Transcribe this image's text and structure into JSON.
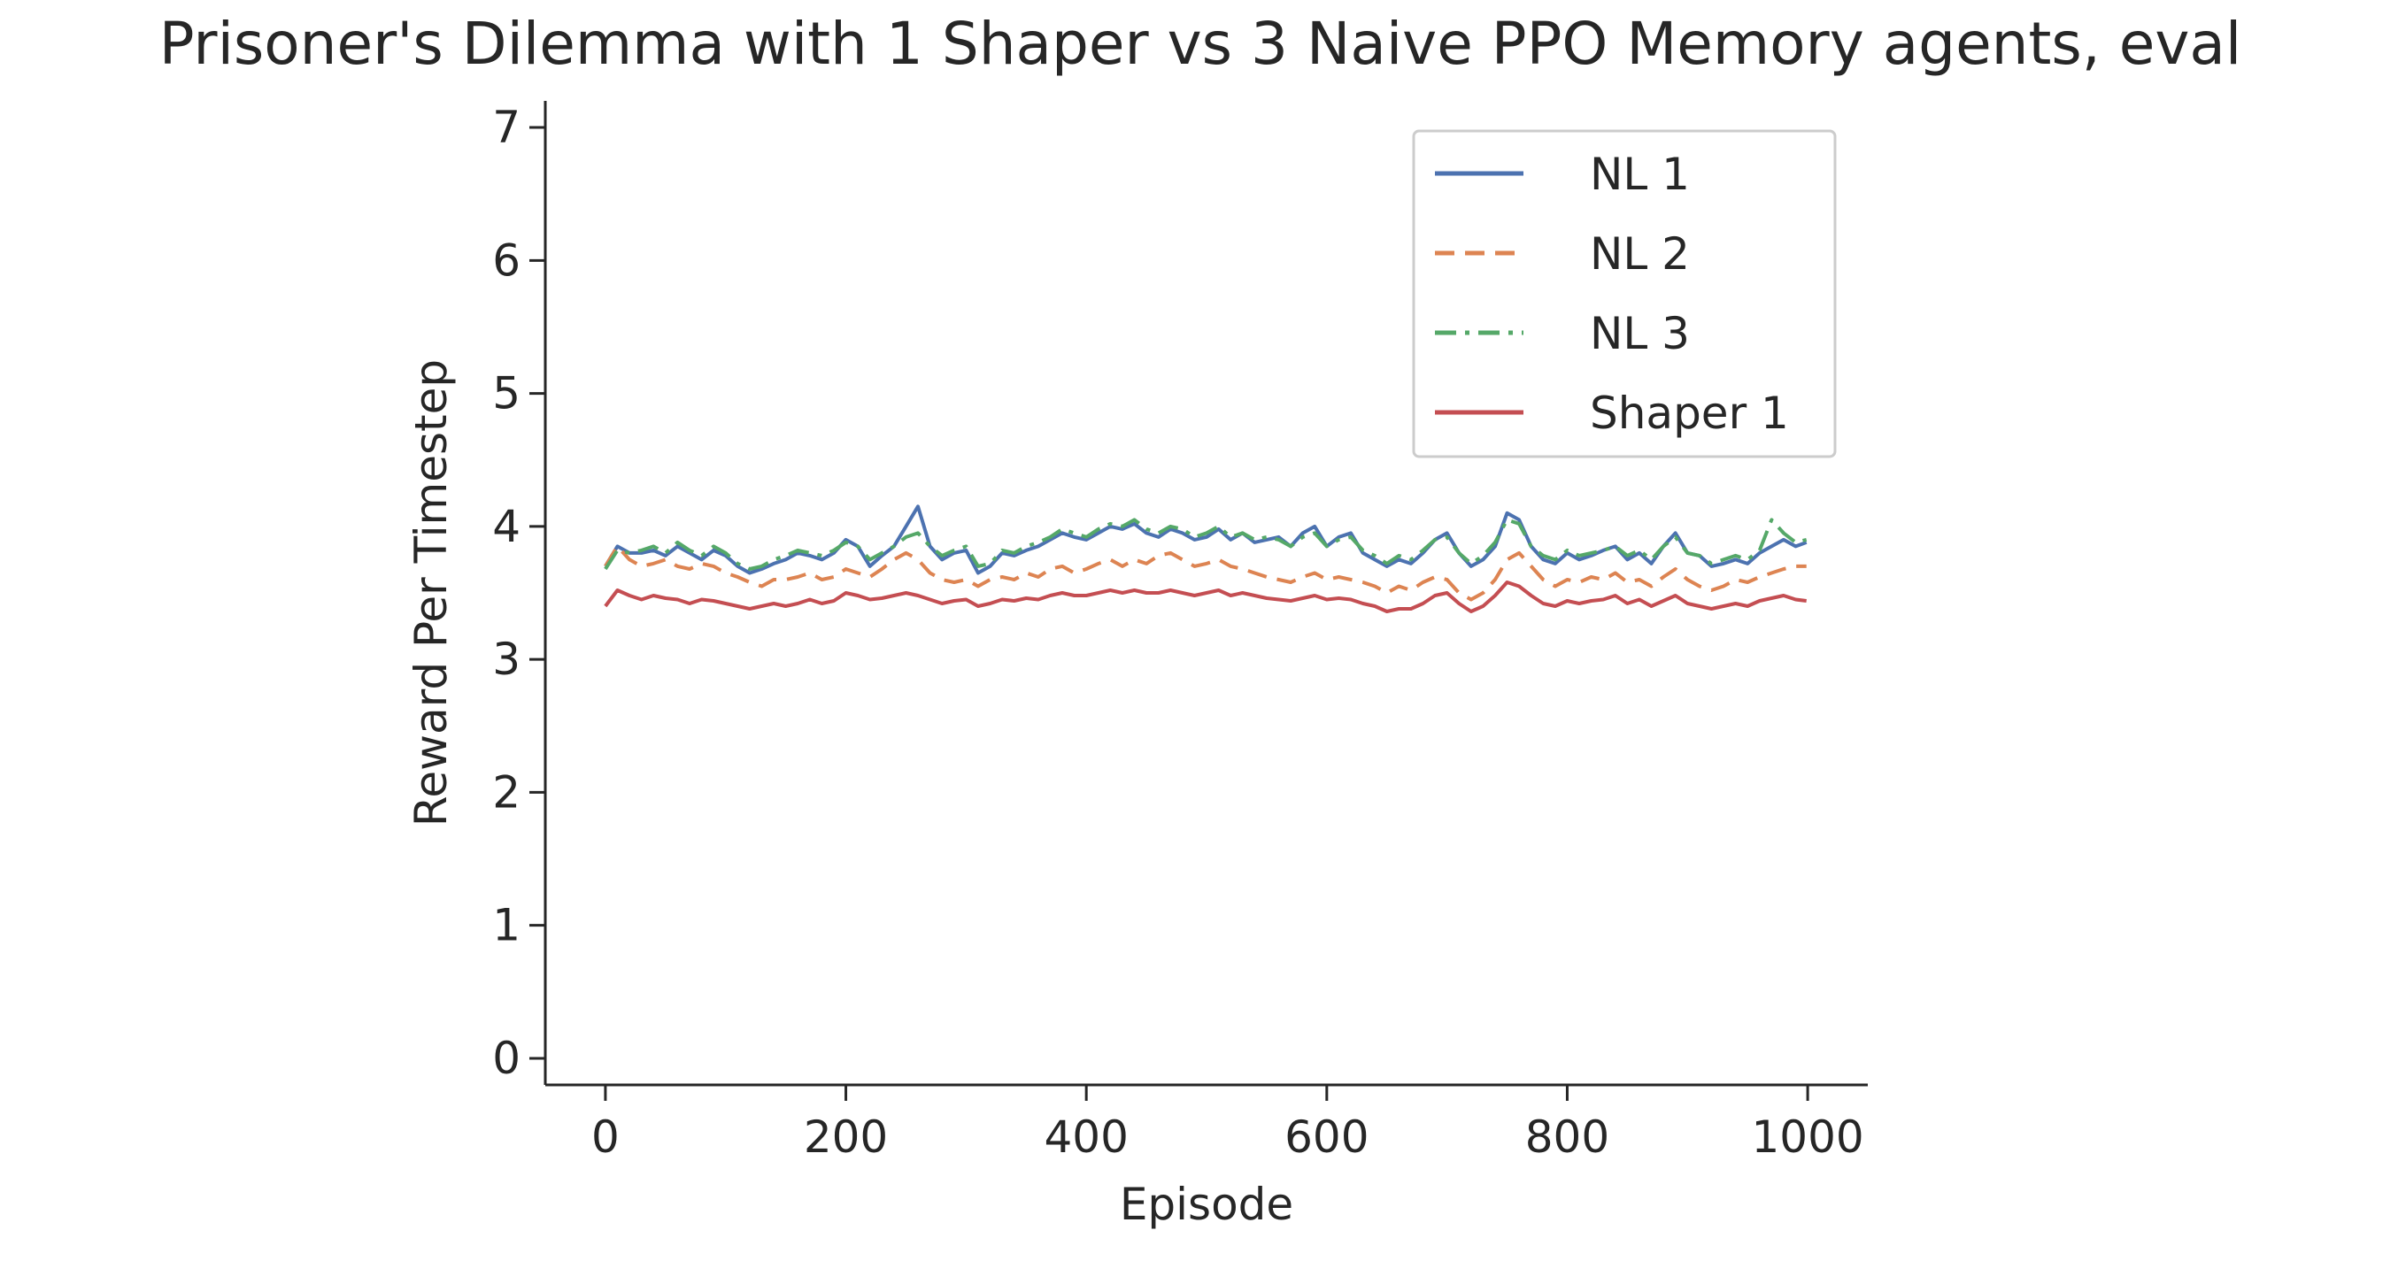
{
  "chart_data": {
    "type": "line",
    "title": "Prisoner's Dilemma with 1 Shaper vs 3 Naive PPO Memory agents, eval",
    "xlabel": "Episode",
    "ylabel": "Reward Per Timestep",
    "xlim": [
      -50,
      1050
    ],
    "ylim": [
      -0.2,
      7.2
    ],
    "xticks": [
      0,
      200,
      400,
      600,
      800,
      1000
    ],
    "yticks": [
      0,
      1,
      2,
      3,
      4,
      5,
      6,
      7
    ],
    "grid": false,
    "legend_position": "top-right",
    "x": [
      0,
      10,
      20,
      30,
      40,
      50,
      60,
      70,
      80,
      90,
      100,
      110,
      120,
      130,
      140,
      150,
      160,
      170,
      180,
      190,
      200,
      210,
      220,
      230,
      240,
      250,
      260,
      270,
      280,
      290,
      300,
      310,
      320,
      330,
      340,
      350,
      360,
      370,
      380,
      390,
      400,
      410,
      420,
      430,
      440,
      450,
      460,
      470,
      480,
      490,
      500,
      510,
      520,
      530,
      540,
      550,
      560,
      570,
      580,
      590,
      600,
      610,
      620,
      630,
      640,
      650,
      660,
      670,
      680,
      690,
      700,
      710,
      720,
      730,
      740,
      750,
      760,
      770,
      780,
      790,
      800,
      810,
      820,
      830,
      840,
      850,
      860,
      870,
      880,
      890,
      900,
      910,
      920,
      930,
      940,
      950,
      960,
      970,
      980,
      990,
      999
    ],
    "series": [
      {
        "name": "NL 1",
        "color": "#4c72b0",
        "dash": "solid",
        "values": [
          3.7,
          3.85,
          3.8,
          3.8,
          3.82,
          3.78,
          3.85,
          3.8,
          3.75,
          3.82,
          3.78,
          3.7,
          3.65,
          3.68,
          3.72,
          3.75,
          3.8,
          3.78,
          3.75,
          3.8,
          3.9,
          3.85,
          3.7,
          3.78,
          3.85,
          4.0,
          4.15,
          3.85,
          3.75,
          3.8,
          3.82,
          3.65,
          3.7,
          3.8,
          3.78,
          3.82,
          3.85,
          3.9,
          3.95,
          3.92,
          3.9,
          3.95,
          4.0,
          3.98,
          4.02,
          3.95,
          3.92,
          3.98,
          3.95,
          3.9,
          3.92,
          3.98,
          3.9,
          3.95,
          3.88,
          3.9,
          3.92,
          3.85,
          3.95,
          4.0,
          3.85,
          3.92,
          3.95,
          3.8,
          3.75,
          3.7,
          3.75,
          3.72,
          3.8,
          3.9,
          3.95,
          3.8,
          3.7,
          3.75,
          3.85,
          4.1,
          4.05,
          3.85,
          3.75,
          3.72,
          3.8,
          3.75,
          3.78,
          3.82,
          3.85,
          3.75,
          3.8,
          3.72,
          3.85,
          3.95,
          3.8,
          3.78,
          3.7,
          3.72,
          3.75,
          3.72,
          3.8,
          3.85,
          3.9,
          3.85,
          3.88
        ]
      },
      {
        "name": "NL 2",
        "color": "#dd8452",
        "dash": "dashed",
        "values": [
          3.7,
          3.85,
          3.75,
          3.7,
          3.72,
          3.75,
          3.7,
          3.68,
          3.72,
          3.7,
          3.65,
          3.62,
          3.58,
          3.55,
          3.6,
          3.6,
          3.62,
          3.65,
          3.6,
          3.62,
          3.68,
          3.65,
          3.62,
          3.68,
          3.75,
          3.8,
          3.75,
          3.65,
          3.6,
          3.58,
          3.6,
          3.55,
          3.6,
          3.62,
          3.6,
          3.65,
          3.62,
          3.68,
          3.7,
          3.65,
          3.68,
          3.72,
          3.75,
          3.7,
          3.75,
          3.72,
          3.78,
          3.8,
          3.75,
          3.7,
          3.72,
          3.75,
          3.7,
          3.68,
          3.65,
          3.62,
          3.6,
          3.58,
          3.62,
          3.65,
          3.6,
          3.62,
          3.6,
          3.58,
          3.55,
          3.5,
          3.55,
          3.52,
          3.58,
          3.62,
          3.6,
          3.5,
          3.45,
          3.5,
          3.6,
          3.75,
          3.8,
          3.7,
          3.6,
          3.55,
          3.6,
          3.58,
          3.62,
          3.6,
          3.65,
          3.58,
          3.6,
          3.55,
          3.62,
          3.68,
          3.6,
          3.55,
          3.52,
          3.55,
          3.6,
          3.58,
          3.62,
          3.65,
          3.68,
          3.7,
          3.7
        ]
      },
      {
        "name": "NL 3",
        "color": "#55a868",
        "dash": "dashdot",
        "values": [
          3.68,
          3.82,
          3.8,
          3.82,
          3.85,
          3.8,
          3.88,
          3.82,
          3.78,
          3.85,
          3.8,
          3.72,
          3.68,
          3.7,
          3.75,
          3.78,
          3.82,
          3.8,
          3.78,
          3.82,
          3.88,
          3.85,
          3.75,
          3.8,
          3.85,
          3.92,
          3.95,
          3.85,
          3.78,
          3.82,
          3.85,
          3.7,
          3.72,
          3.82,
          3.8,
          3.85,
          3.88,
          3.92,
          3.98,
          3.95,
          3.92,
          3.98,
          4.02,
          4.0,
          4.05,
          3.98,
          3.95,
          4.0,
          3.98,
          3.92,
          3.95,
          4.0,
          3.92,
          3.95,
          3.9,
          3.92,
          3.9,
          3.85,
          3.92,
          3.95,
          3.85,
          3.9,
          3.92,
          3.82,
          3.78,
          3.72,
          3.78,
          3.75,
          3.82,
          3.9,
          3.92,
          3.8,
          3.72,
          3.78,
          3.88,
          4.05,
          4.02,
          3.85,
          3.78,
          3.75,
          3.82,
          3.78,
          3.8,
          3.82,
          3.85,
          3.78,
          3.82,
          3.75,
          3.85,
          3.92,
          3.8,
          3.78,
          3.72,
          3.75,
          3.78,
          3.75,
          3.82,
          4.05,
          3.95,
          3.88,
          3.9
        ]
      },
      {
        "name": "Shaper 1",
        "color": "#c44e52",
        "dash": "solid",
        "values": [
          3.4,
          3.52,
          3.48,
          3.45,
          3.48,
          3.46,
          3.45,
          3.42,
          3.45,
          3.44,
          3.42,
          3.4,
          3.38,
          3.4,
          3.42,
          3.4,
          3.42,
          3.45,
          3.42,
          3.44,
          3.5,
          3.48,
          3.45,
          3.46,
          3.48,
          3.5,
          3.48,
          3.45,
          3.42,
          3.44,
          3.45,
          3.4,
          3.42,
          3.45,
          3.44,
          3.46,
          3.45,
          3.48,
          3.5,
          3.48,
          3.48,
          3.5,
          3.52,
          3.5,
          3.52,
          3.5,
          3.5,
          3.52,
          3.5,
          3.48,
          3.5,
          3.52,
          3.48,
          3.5,
          3.48,
          3.46,
          3.45,
          3.44,
          3.46,
          3.48,
          3.45,
          3.46,
          3.45,
          3.42,
          3.4,
          3.36,
          3.38,
          3.38,
          3.42,
          3.48,
          3.5,
          3.42,
          3.36,
          3.4,
          3.48,
          3.58,
          3.55,
          3.48,
          3.42,
          3.4,
          3.44,
          3.42,
          3.44,
          3.45,
          3.48,
          3.42,
          3.45,
          3.4,
          3.44,
          3.48,
          3.42,
          3.4,
          3.38,
          3.4,
          3.42,
          3.4,
          3.44,
          3.46,
          3.48,
          3.45,
          3.44
        ]
      }
    ]
  }
}
